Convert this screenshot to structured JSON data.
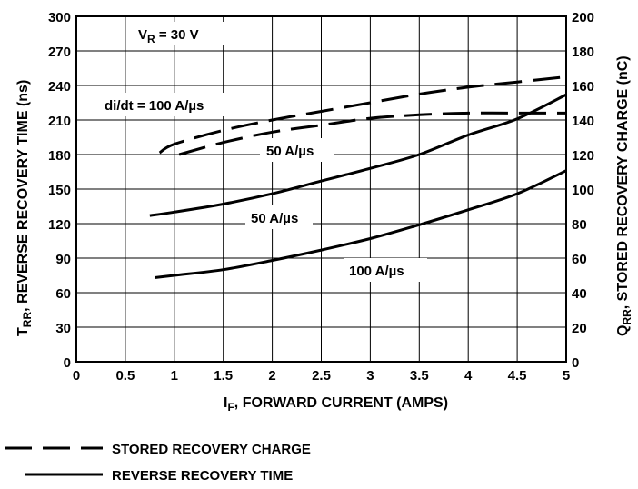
{
  "chart_data": {
    "type": "line",
    "x_axis": {
      "label_main": "I",
      "label_sub": "F",
      "label_rest": ", FORWARD CURRENT (AMPS)",
      "range": [
        0,
        5
      ],
      "ticks": [
        0,
        0.5,
        1,
        1.5,
        2,
        2.5,
        3,
        3.5,
        4,
        4.5,
        5
      ],
      "tick_labels": [
        "0",
        "0.5",
        "1",
        "1.5",
        "2",
        "2.5",
        "3",
        "3.5",
        "4",
        "4.5",
        "5"
      ]
    },
    "y_left": {
      "label_main": "T",
      "label_sub": "RR",
      "label_rest": ", REVERSE RECOVERY TIME (ns)",
      "range": [
        0,
        300
      ],
      "ticks": [
        0,
        30,
        60,
        90,
        120,
        150,
        180,
        210,
        240,
        270,
        300
      ],
      "tick_labels": [
        "0",
        "30",
        "60",
        "90",
        "120",
        "150",
        "180",
        "210",
        "240",
        "270",
        "300"
      ]
    },
    "y_right": {
      "label_main": "Q",
      "label_sub": "RR",
      "label_rest": ", STORED RECOVERY CHARGE (nC)",
      "range": [
        0,
        200
      ],
      "ticks": [
        0,
        20,
        40,
        60,
        80,
        100,
        120,
        140,
        160,
        180,
        200
      ],
      "tick_labels": [
        "0",
        "20",
        "40",
        "60",
        "80",
        "100",
        "120",
        "140",
        "160",
        "180",
        "200"
      ]
    },
    "grid": true,
    "series": [
      {
        "name": "Stored recovery charge, 100 A/µs",
        "style": "dashed",
        "axis": "right",
        "x": [
          0.85,
          1.0,
          1.5,
          2.0,
          2.5,
          3.0,
          3.5,
          4.0,
          4.5,
          5.0
        ],
        "y": [
          121,
          126,
          134,
          140,
          145,
          150,
          155,
          159,
          162,
          165
        ]
      },
      {
        "name": "Stored recovery charge, 50 A/µs",
        "style": "dashed",
        "axis": "right",
        "x": [
          1.05,
          1.5,
          2.0,
          2.5,
          3.0,
          3.5,
          4.0,
          4.5,
          5.0
        ],
        "y": [
          120,
          127,
          133,
          137,
          141,
          143,
          144,
          144,
          144
        ]
      },
      {
        "name": "Reverse recovery time, 100 A/µs",
        "style": "solid",
        "axis": "left",
        "x": [
          0.75,
          1.0,
          1.5,
          2.0,
          2.5,
          3.0,
          3.5,
          4.0,
          4.5,
          5.0
        ],
        "y": [
          127,
          130,
          137,
          146,
          157,
          168,
          180,
          197,
          211,
          232
        ]
      },
      {
        "name": "Reverse recovery time, 50 A/µs",
        "style": "solid",
        "axis": "left",
        "x": [
          0.8,
          1.0,
          1.5,
          2.0,
          2.5,
          3.0,
          3.5,
          4.0,
          4.5,
          5.0
        ],
        "y": [
          73,
          75,
          80,
          88,
          97,
          107,
          119,
          132,
          146,
          166
        ]
      }
    ],
    "annotations": {
      "vr_main": "V",
      "vr_sub": "R",
      "vr_rest": " = 30 V",
      "didt": "di/dt = 100 A/µs",
      "label_50_upper": "50 A/µs",
      "label_50_lower": "50 A/µs",
      "label_100_lower": "100 A/µs"
    },
    "legend": [
      {
        "label": "STORED RECOVERY CHARGE",
        "style": "dashed"
      },
      {
        "label": "REVERSE RECOVERY TIME",
        "style": "solid"
      }
    ]
  }
}
